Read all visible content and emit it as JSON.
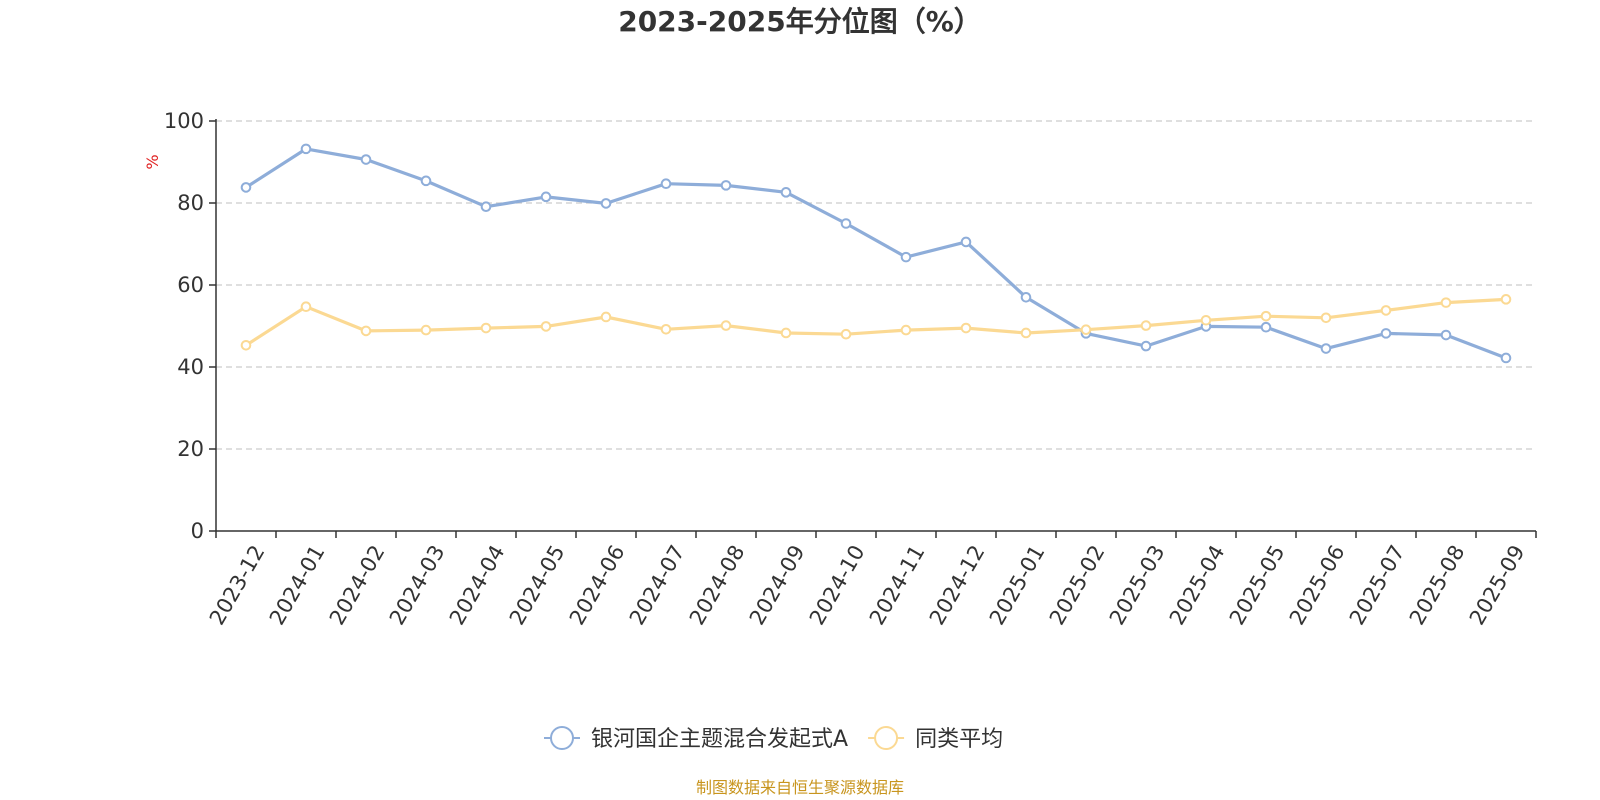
{
  "chart_data": {
    "type": "line",
    "title": "2023-2025年分位图（%）",
    "ylabel": "%",
    "xlabel": "",
    "ylim": [
      0,
      100
    ],
    "yticks": [
      0,
      20,
      40,
      60,
      80,
      100
    ],
    "grid": true,
    "legend_position": "bottom",
    "categories": [
      "2023-12",
      "2024-01",
      "2024-02",
      "2024-03",
      "2024-04",
      "2024-05",
      "2024-06",
      "2024-07",
      "2024-08",
      "2024-09",
      "2024-10",
      "2024-11",
      "2024-12",
      "2025-01",
      "2025-02",
      "2025-03",
      "2025-04",
      "2025-05",
      "2025-06",
      "2025-07",
      "2025-08",
      "2025-09"
    ],
    "series": [
      {
        "name": "银河国企主题混合发起式A",
        "color": "#8eadd9",
        "values": [
          83.8,
          93.2,
          90.6,
          85.4,
          79.1,
          81.5,
          79.9,
          84.7,
          84.3,
          82.6,
          75.0,
          66.8,
          70.5,
          57.0,
          48.2,
          45.1,
          49.9,
          49.7,
          44.5,
          48.2,
          47.8,
          42.2
        ]
      },
      {
        "name": "同类平均",
        "color": "#fbd993",
        "values": [
          45.3,
          54.7,
          48.8,
          49.0,
          49.5,
          49.9,
          52.2,
          49.2,
          50.1,
          48.3,
          48.0,
          49.0,
          49.5,
          48.3,
          49.1,
          50.1,
          51.4,
          52.4,
          52.0,
          53.8,
          55.7,
          56.5
        ]
      }
    ]
  },
  "source_note": "制图数据来自恒生聚源数据库",
  "colors": {
    "axis": "#333333",
    "grid": "#cccccc",
    "ylabel": "#e02020",
    "source": "#c8951e"
  }
}
